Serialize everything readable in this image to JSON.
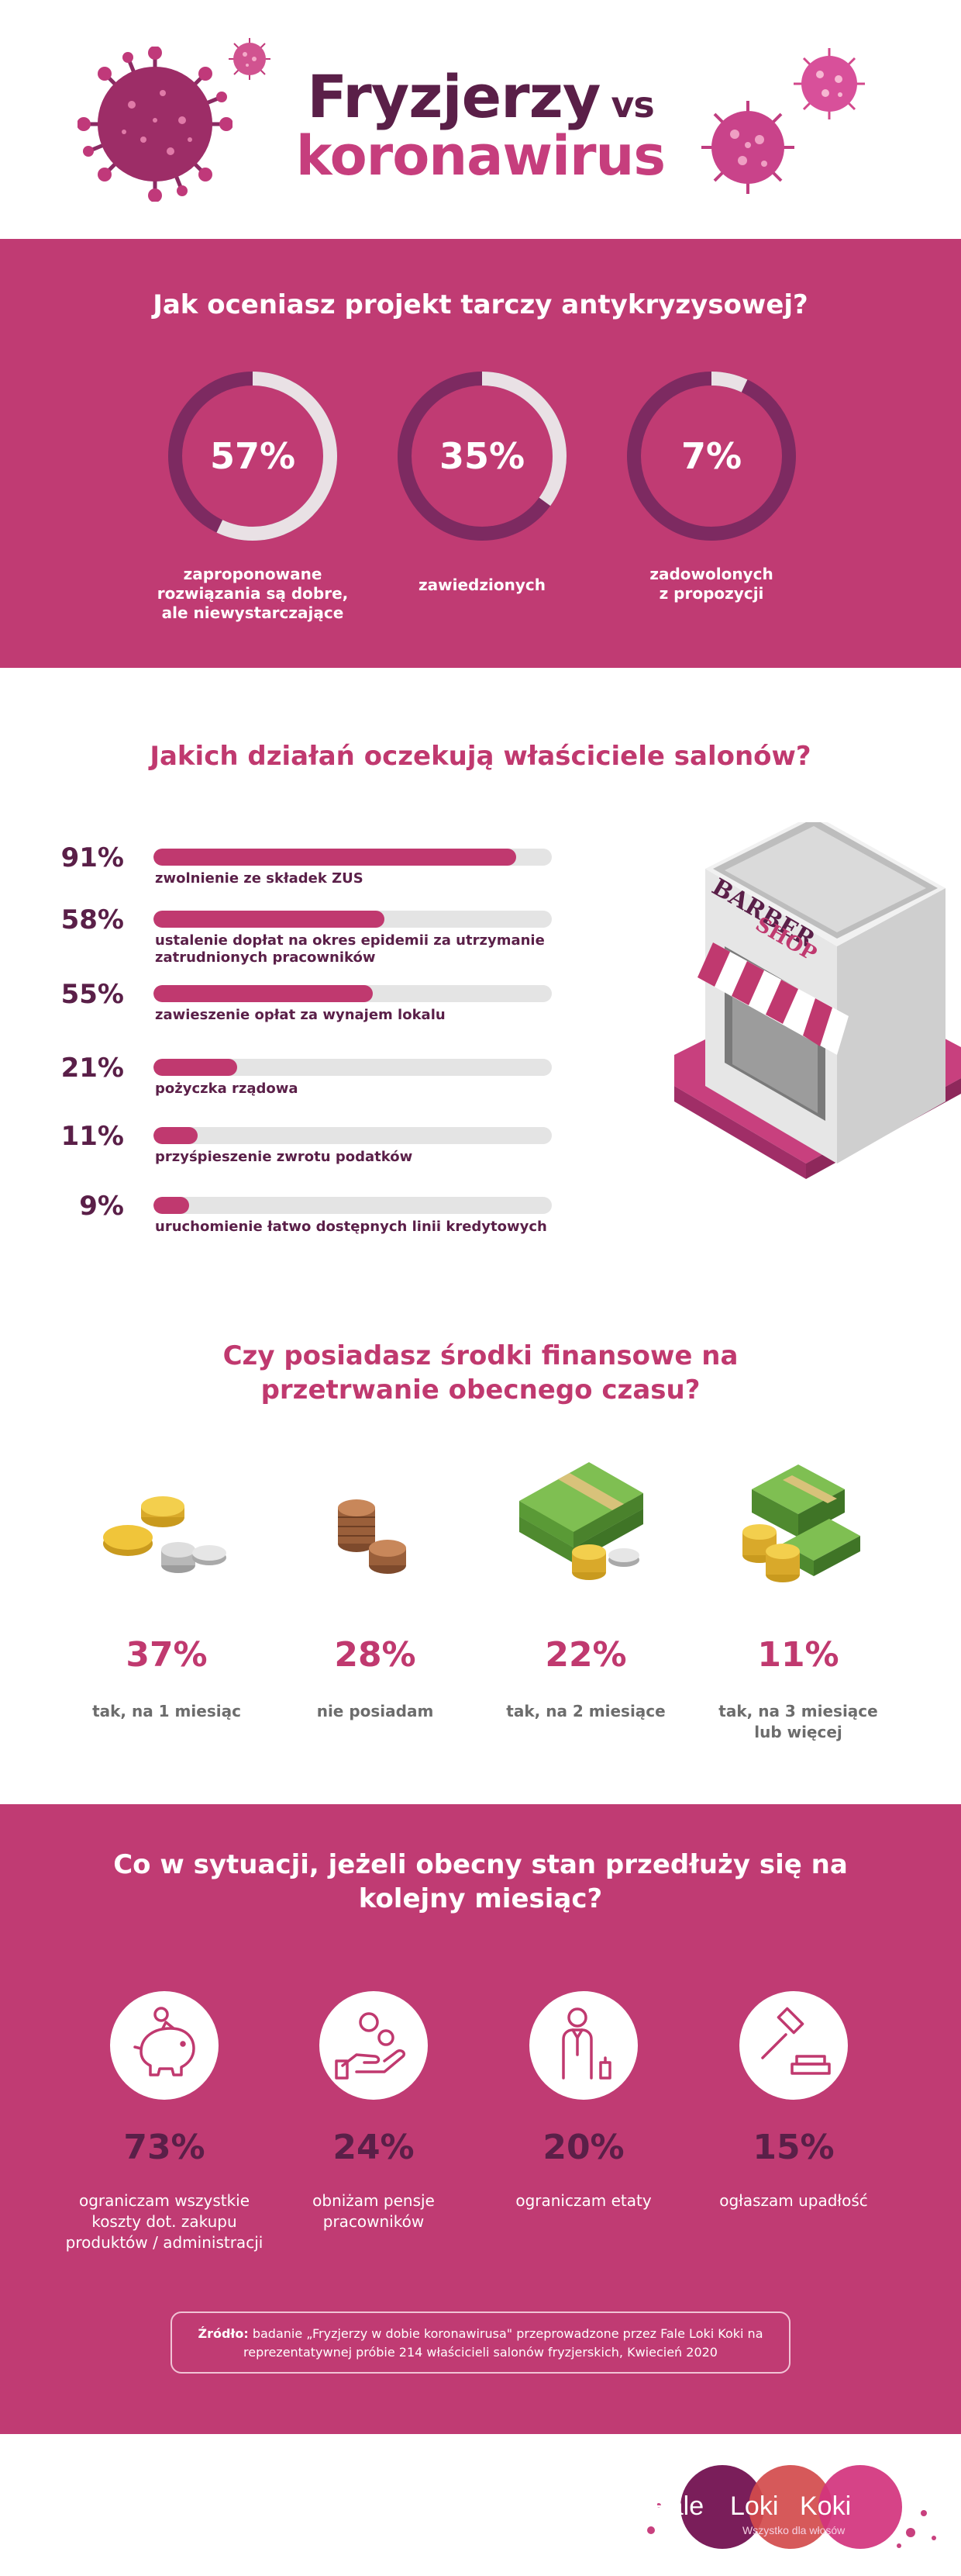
{
  "header": {
    "title_main": "Fryzjerzy",
    "title_vs": "vs",
    "title_sub": "koronawirus",
    "virus_icon": "virus-icon"
  },
  "section1": {
    "title": "Jak oceniasz projekt tarczy antykryzysowej?",
    "items": [
      {
        "pct": "57%",
        "value": 57,
        "label": [
          "zaproponowane",
          "rozwiązania są dobre,",
          "ale niewystarczające"
        ]
      },
      {
        "pct": "35%",
        "value": 35,
        "label": [
          "zawiedzionych"
        ]
      },
      {
        "pct": "7%",
        "value": 7,
        "label": [
          "zadowolonych",
          "z propozycji"
        ]
      }
    ],
    "colors": {
      "ring": "#7d2a61",
      "fill": "#e9e1e5",
      "band": "#c03b73"
    }
  },
  "section2": {
    "title": "Jakich działań oczekują właściciele salonów?",
    "shop_sign": [
      "BARBER",
      "SHOP"
    ],
    "items": [
      {
        "pct": "91%",
        "value": 91,
        "label": [
          "zwolnienie ze składek ZUS"
        ]
      },
      {
        "pct": "58%",
        "value": 58,
        "label": [
          "ustalenie dopłat na okres epidemii za utrzymanie",
          "zatrudnionych pracowników"
        ]
      },
      {
        "pct": "55%",
        "value": 55,
        "label": [
          "zawieszenie opłat za wynajem lokalu"
        ]
      },
      {
        "pct": "21%",
        "value": 21,
        "label": [
          "pożyczka rządowa"
        ]
      },
      {
        "pct": "11%",
        "value": 11,
        "label": [
          "przyśpieszenie zwrotu podatków"
        ]
      },
      {
        "pct": "9%",
        "value": 9,
        "label": [
          "uruchomienie łatwo dostępnych linii kredytowych"
        ]
      }
    ]
  },
  "section3": {
    "title_line1": "Czy posiadasz środki finansowe na",
    "title_line2": "przetrwanie obecnego czasu?",
    "items": [
      {
        "pct": "37%",
        "label": [
          "tak, na 1 miesiąc"
        ],
        "icon": "gold-silver-coins-icon"
      },
      {
        "pct": "28%",
        "label": [
          "nie posiadam"
        ],
        "icon": "copper-coins-icon"
      },
      {
        "pct": "22%",
        "label": [
          "tak, na 2 miesiące"
        ],
        "icon": "banknotes-coins-icon"
      },
      {
        "pct": "11%",
        "label": [
          "tak, na 3 miesiące",
          "lub więcej"
        ],
        "icon": "banknote-stacks-icon"
      }
    ]
  },
  "section4": {
    "title_line1": "Co w sytuacji, jeżeli obecny stan przedłuży się na",
    "title_line2": "kolejny miesiąc?",
    "items": [
      {
        "pct": "73%",
        "label": [
          "ograniczam wszystkie",
          "koszty dot. zakupu",
          "produktów / administracji"
        ],
        "icon": "piggy-bank-icon"
      },
      {
        "pct": "24%",
        "label": [
          "obniżam pensje",
          "pracowników"
        ],
        "icon": "hand-coin-icon"
      },
      {
        "pct": "20%",
        "label": [
          "ograniczam etaty"
        ],
        "icon": "employee-icon"
      },
      {
        "pct": "15%",
        "label": [
          "ogłaszam upadłość"
        ],
        "icon": "gavel-icon"
      }
    ],
    "source_bold": "Źródło:",
    "source_line1": " badanie „Fryzjerzy w dobie koronawirusa\" przeprowadzone przez Fale Loki Koki na",
    "source_line2": "reprezentatywnej próbie 214 właścicieli salonów fryzjerskich, Kwiecień 2020"
  },
  "footer": {
    "logo_words": [
      "Fale",
      "Loki",
      "Koki"
    ],
    "tagline": "Wszystko dla włosów"
  },
  "chart_data": [
    {
      "type": "pie",
      "title": "Jak oceniasz projekt tarczy antykryzysowej?",
      "categories": [
        "zaproponowane rozwiązania są dobre, ale niewystarczające",
        "zawiedzionych",
        "zadowolonych z propozycji"
      ],
      "values": [
        57,
        35,
        7
      ]
    },
    {
      "type": "bar",
      "title": "Jakich działań oczekują właściciele salonów?",
      "categories": [
        "zwolnienie ze składek ZUS",
        "ustalenie dopłat na okres epidemii za utrzymanie zatrudnionych pracowników",
        "zawieszenie opłat za wynajem lokalu",
        "pożyczka rządowa",
        "przyśpieszenie zwrotu podatków",
        "uruchomienie łatwo dostępnych linii kredytowych"
      ],
      "values": [
        91,
        58,
        55,
        21,
        11,
        9
      ],
      "ylim": [
        0,
        100
      ]
    },
    {
      "type": "table",
      "title": "Czy posiadasz środki finansowe na przetrwanie obecnego czasu?",
      "categories": [
        "tak, na 1 miesiąc",
        "nie posiadam",
        "tak, na 2 miesiące",
        "tak, na 3 miesiące lub więcej"
      ],
      "values": [
        37,
        28,
        22,
        11
      ]
    },
    {
      "type": "table",
      "title": "Co w sytuacji, jeżeli obecny stan przedłuży się na kolejny miesiąc?",
      "categories": [
        "ograniczam wszystkie koszty dot. zakupu produktów / administracji",
        "obniżam pensje pracowników",
        "ograniczam etaty",
        "ogłaszam upadłość"
      ],
      "values": [
        73,
        24,
        20,
        15
      ]
    }
  ]
}
